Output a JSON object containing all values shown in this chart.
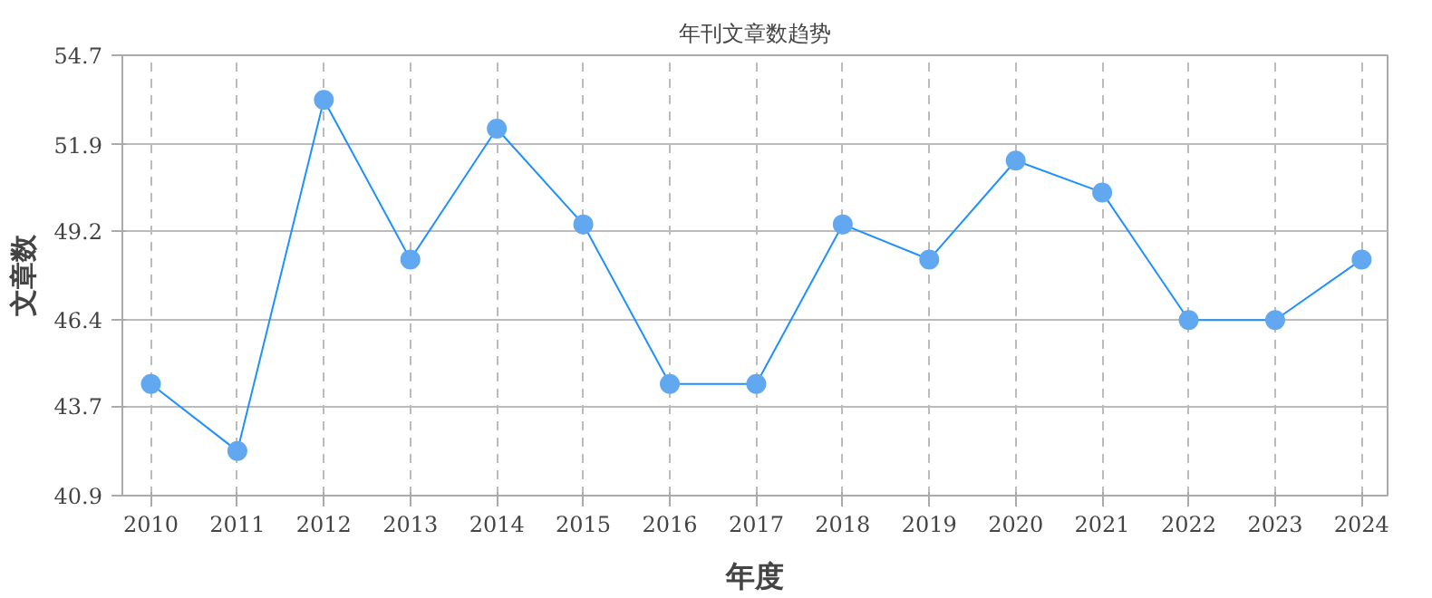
{
  "chart_data": {
    "type": "line",
    "title": "年刊文章数趋势",
    "xlabel": "年度",
    "ylabel": "文章数",
    "categories": [
      "2010",
      "2011",
      "2012",
      "2013",
      "2014",
      "2015",
      "2016",
      "2017",
      "2018",
      "2019",
      "2020",
      "2021",
      "2022",
      "2023",
      "2024"
    ],
    "series": [
      {
        "color": "#1e90ff",
        "values": [
          44.4,
          42.3,
          53.3,
          48.3,
          52.4,
          49.4,
          44.4,
          44.4,
          49.4,
          48.3,
          51.4,
          50.4,
          46.4,
          46.4,
          48.3
        ]
      }
    ],
    "ylim": [
      40.9,
      54.7
    ],
    "yticks": [
      40.9,
      43.7,
      46.4,
      49.2,
      51.9,
      54.7
    ],
    "grid": true,
    "marker": "circle",
    "line_style": "solid"
  }
}
